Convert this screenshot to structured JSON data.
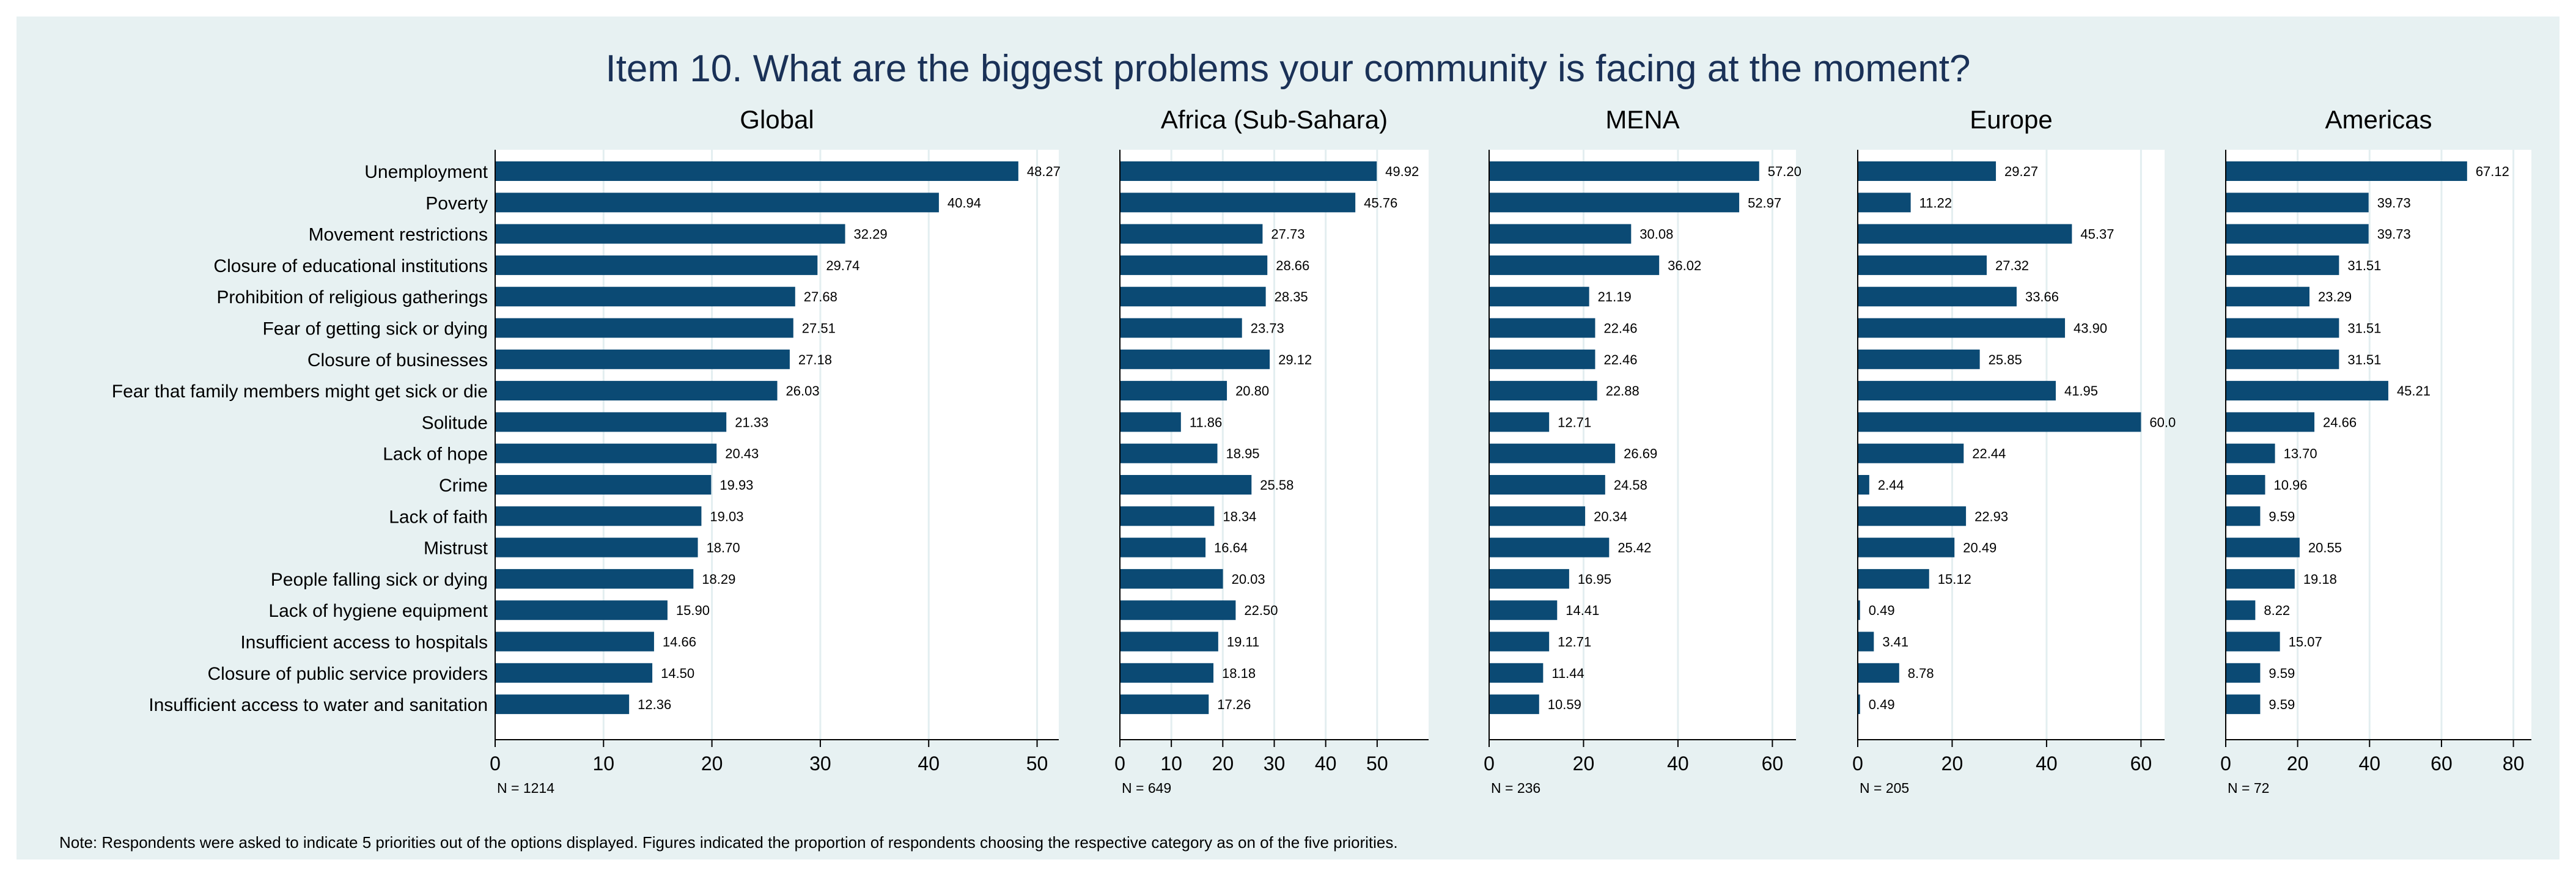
{
  "colors": {
    "frame_bg": "#e7f1f2",
    "plot_bg": "#ffffff",
    "bar": "#0b4a74",
    "grid": "#e3eef0",
    "title": "#1a3157"
  },
  "chart_data": {
    "type": "bar",
    "orientation": "horizontal",
    "title": "Item 10. What are the biggest problems your community is facing at the moment?",
    "note": "Note: Respondents were asked to indicate 5 priorities out of the options displayed. Figures indicated the proportion of respondents choosing the respective category as on of the five priorities.",
    "categories": [
      "Unemployment",
      "Poverty",
      "Movement restrictions",
      "Closure of educational institutions",
      "Prohibition of religious gatherings",
      "Fear of getting sick or dying",
      "Closure of businesses",
      "Fear that family members might get sick or die",
      "Solitude",
      "Lack of hope",
      "Crime",
      "Lack of faith",
      "Mistrust",
      "People falling sick or dying",
      "Lack of hygiene equipment",
      "Insufficient access to hospitals",
      "Closure of public service providers",
      "Insufficient access to water and sanitation"
    ],
    "panels": [
      {
        "name": "Global",
        "n_label": "N = 1214",
        "xlim": [
          0,
          52
        ],
        "ticks": [
          0,
          10,
          20,
          30,
          40,
          50
        ],
        "values": [
          48.27,
          40.94,
          32.29,
          29.74,
          27.68,
          27.51,
          27.18,
          26.03,
          21.33,
          20.43,
          19.93,
          19.03,
          18.7,
          18.29,
          15.9,
          14.66,
          14.5,
          12.36
        ],
        "labels": [
          "48.27",
          "40.94",
          "32.29",
          "29.74",
          "27.68",
          "27.51",
          "27.18",
          "26.03",
          "21.33",
          "20.43",
          "19.93",
          "19.03",
          "18.70",
          "18.29",
          "15.90",
          "14.66",
          "14.50",
          "12.36"
        ]
      },
      {
        "name": "Africa (Sub-Sahara)",
        "n_label": "N = 649",
        "xlim": [
          0,
          60
        ],
        "ticks": [
          0,
          10,
          20,
          30,
          40,
          50
        ],
        "values": [
          49.92,
          45.76,
          27.73,
          28.66,
          28.35,
          23.73,
          29.12,
          20.8,
          11.86,
          18.95,
          25.58,
          18.34,
          16.64,
          20.03,
          22.5,
          19.11,
          18.18,
          17.26
        ],
        "labels": [
          "49.92",
          "45.76",
          "27.73",
          "28.66",
          "28.35",
          "23.73",
          "29.12",
          "20.80",
          "11.86",
          "18.95",
          "25.58",
          "18.34",
          "16.64",
          "20.03",
          "22.50",
          "19.11",
          "18.18",
          "17.26"
        ]
      },
      {
        "name": "MENA",
        "n_label": "N = 236",
        "xlim": [
          0,
          65
        ],
        "ticks": [
          0,
          20,
          40,
          60
        ],
        "values": [
          57.2,
          52.97,
          30.08,
          36.02,
          21.19,
          22.46,
          22.46,
          22.88,
          12.71,
          26.69,
          24.58,
          20.34,
          25.42,
          16.95,
          14.41,
          12.71,
          11.44,
          10.59
        ],
        "labels": [
          "57.20",
          "52.97",
          "30.08",
          "36.02",
          "21.19",
          "22.46",
          "22.46",
          "22.88",
          "12.71",
          "26.69",
          "24.58",
          "20.34",
          "25.42",
          "16.95",
          "14.41",
          "12.71",
          "11.44",
          "10.59"
        ]
      },
      {
        "name": "Europe",
        "n_label": "N = 205",
        "xlim": [
          0,
          65
        ],
        "ticks": [
          0,
          20,
          40,
          60
        ],
        "values": [
          29.27,
          11.22,
          45.37,
          27.32,
          33.66,
          43.9,
          25.85,
          41.95,
          60.0,
          22.44,
          2.44,
          22.93,
          20.49,
          15.12,
          0.49,
          3.41,
          8.78,
          0.49
        ],
        "labels": [
          "29.27",
          "11.22",
          "45.37",
          "27.32",
          "33.66",
          "43.90",
          "25.85",
          "41.95",
          "60.0",
          "22.44",
          "2.44",
          "22.93",
          "20.49",
          "15.12",
          "0.49",
          "3.41",
          "8.78",
          "0.49"
        ]
      },
      {
        "name": "Americas",
        "n_label": "N = 72",
        "xlim": [
          0,
          85
        ],
        "ticks": [
          0,
          20,
          40,
          60,
          80
        ],
        "values": [
          67.12,
          39.73,
          39.73,
          31.51,
          23.29,
          31.51,
          31.51,
          45.21,
          24.66,
          13.7,
          10.96,
          9.59,
          20.55,
          19.18,
          8.22,
          15.07,
          9.59,
          9.59
        ],
        "labels": [
          "67.12",
          "39.73",
          "39.73",
          "31.51",
          "23.29",
          "31.51",
          "31.51",
          "45.21",
          "24.66",
          "13.70",
          "10.96",
          "9.59",
          "20.55",
          "19.18",
          "8.22",
          "15.07",
          "9.59",
          "9.59"
        ]
      }
    ]
  }
}
